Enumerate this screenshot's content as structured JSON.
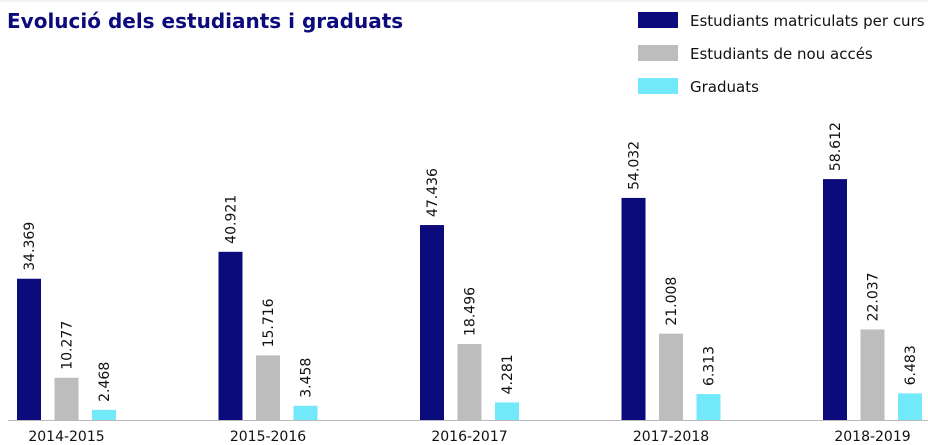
{
  "chart_data": {
    "type": "bar",
    "title": "Evolució dels estudiants i graduats",
    "categories": [
      "2014-2015",
      "2015-2016",
      "2016-2017",
      "2017-2018",
      "2018-2019"
    ],
    "series": [
      {
        "name": "Estudiants matriculats per curs",
        "color": "#0b0b7c",
        "values": [
          34369,
          40921,
          47436,
          54032,
          58612
        ],
        "value_labels": [
          "34.369",
          "40.921",
          "47.436",
          "54.032",
          "58.612"
        ]
      },
      {
        "name": "Estudiants de nou accés",
        "color": "#bdbdbd",
        "values": [
          10277,
          15716,
          18496,
          21008,
          22037
        ],
        "value_labels": [
          "10.277",
          "15.716",
          "18.496",
          "21.008",
          "22.037"
        ]
      },
      {
        "name": "Graduats",
        "color": "#72e9f9",
        "values": [
          2468,
          3458,
          4281,
          6313,
          6483
        ],
        "value_labels": [
          "2.468",
          "3.458",
          "4.281",
          "6.313",
          "6.483"
        ]
      }
    ]
  }
}
